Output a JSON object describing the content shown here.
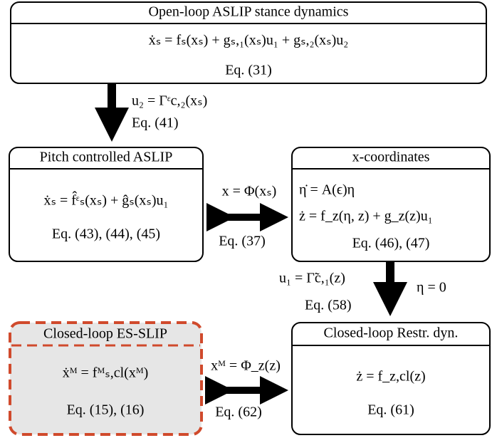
{
  "nodes": [
    {
      "title": "Open-loop ASLIP stance dynamics",
      "lines": [
        "ẋₛ = fₛ(xₛ) + gₛ,₁(xₛ)u₁ + gₛ,₂(xₛ)u₂",
        "Eq. (31)"
      ]
    },
    {
      "title": "Pitch controlled ASLIP",
      "lines": [
        "ẋₛ = f̂ᵋₛ(xₛ) + ĝₛ(xₛ)u₁",
        "Eq. (43), (44), (45)"
      ]
    },
    {
      "title": "x-coordinates",
      "lines": [
        "η̇ = A(ϵ)η",
        "ż = f_z(η, z) + g_z(z)u₁",
        "Eq. (46), (47)"
      ]
    },
    {
      "title": "Closed-loop ES-SLIP",
      "lines": [
        "ẋᴹ = fᴹₛ,cl(xᴹ)",
        "Eq. (15), (16)"
      ]
    },
    {
      "title": "Closed-loop Restr. dyn.",
      "lines": [
        "ż = f_z,cl(z)",
        "Eq. (61)"
      ]
    }
  ],
  "edges": [
    {
      "labels": [
        "u₂ = Γᵋc,₂(xₛ)",
        "Eq. (41)"
      ]
    },
    {
      "labels": [
        "x = Φ(xₛ)",
        "Eq. (37)"
      ]
    },
    {
      "labels": [
        "u₁ = Γ̃c,₁(z)",
        "η = 0",
        "Eq. (58)"
      ]
    },
    {
      "labels": [
        "xᴹ = Φ_z(z)",
        "Eq. (62)"
      ]
    }
  ]
}
